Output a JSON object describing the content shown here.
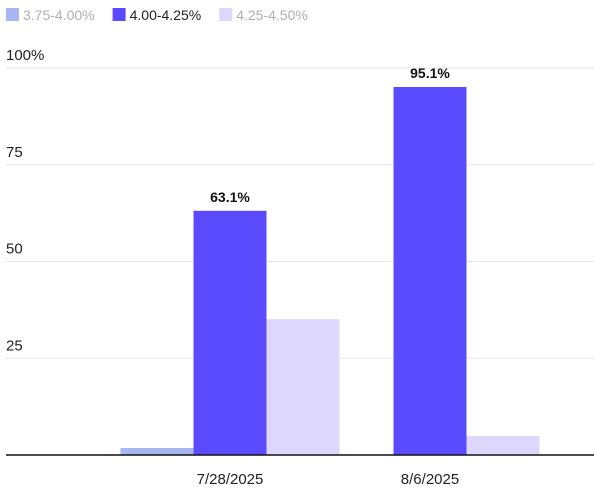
{
  "chart_data": {
    "type": "bar",
    "categories": [
      "7/28/2025",
      "8/6/2025"
    ],
    "series": [
      {
        "name": "3.75-4.00%",
        "color": "#a8b6f2",
        "values": [
          1.8,
          0
        ]
      },
      {
        "name": "4.00-4.25%",
        "color": "#5b4bff",
        "values": [
          63.1,
          95.1
        ]
      },
      {
        "name": "4.25-4.50%",
        "color": "#ddd8fb",
        "values": [
          35.1,
          4.9
        ]
      }
    ],
    "data_labels": {
      "series": "4.00-4.25%",
      "labels": [
        "63.1%",
        "95.1%"
      ]
    },
    "y_ticks": [
      {
        "value": 25,
        "label": "25"
      },
      {
        "value": 50,
        "label": "50"
      },
      {
        "value": 75,
        "label": "75"
      },
      {
        "value": 100,
        "label": "100%"
      }
    ],
    "ylim": [
      0,
      100
    ],
    "grid": true,
    "legend_position": "top-left",
    "legend_inactive": [
      "3.75-4.00%",
      "4.25-4.50%"
    ],
    "colors": {
      "inactive_legend_text": "#b0b0b0",
      "active_legend_text": "#222222",
      "grid": "#e6e6e6",
      "baseline": "#111111"
    }
  }
}
